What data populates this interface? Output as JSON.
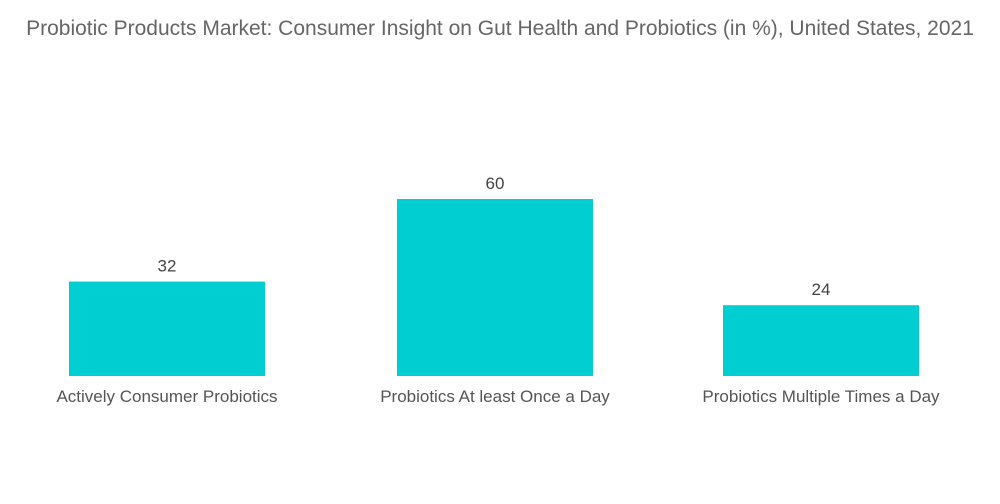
{
  "chart_data": {
    "type": "bar",
    "title": "Probiotic Products Market: Consumer Insight on Gut Health and Probiotics (in %), United States, 2021",
    "categories": [
      "Actively Consumer Probiotics",
      "Probiotics At least Once a Day",
      "Probiotics Multiple Times a Day"
    ],
    "values": [
      32,
      60,
      24
    ],
    "xlabel": "",
    "ylabel": "",
    "ylim": [
      0,
      60
    ],
    "grid": false,
    "legend": "none",
    "bar_color": "#00CED1"
  }
}
